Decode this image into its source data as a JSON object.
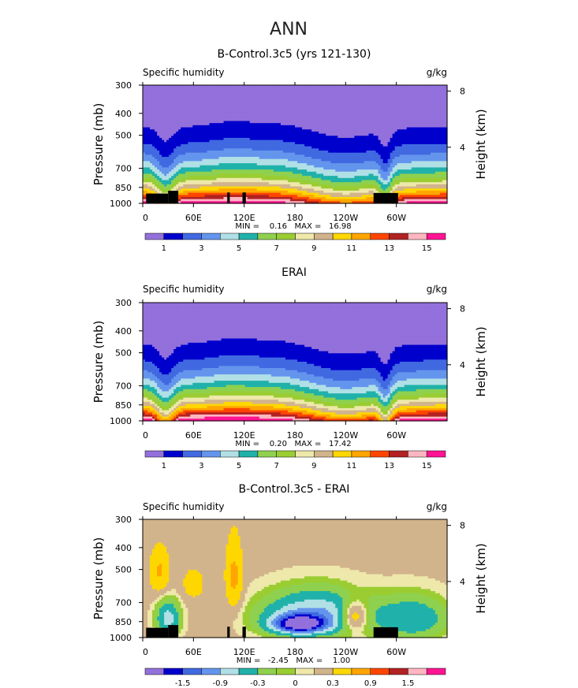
{
  "figure": {
    "season": "ANN",
    "colors_abs": [
      "#9370db",
      "#0000cd",
      "#4169e1",
      "#6495ed",
      "#b0e0e6",
      "#20b2aa",
      "#8fd14f",
      "#9acd32",
      "#eee8aa",
      "#d2b48c",
      "#ffd700",
      "#ffa500",
      "#ff4500",
      "#b22222",
      "#ffb6c1",
      "#ff1493"
    ],
    "colors_diff": [
      "#9370db",
      "#0000cd",
      "#4169e1",
      "#6495ed",
      "#b0e0e6",
      "#20b2aa",
      "#8fd14f",
      "#9acd32",
      "#eee8aa",
      "#d2b48c",
      "#ffd700",
      "#ffa500",
      "#ff4500",
      "#b22222",
      "#ffb6c1",
      "#ff1493"
    ]
  },
  "chart_data": [
    {
      "type": "heatmap",
      "title": "B-Control.3c5 (yrs 121-130)",
      "left_label": "Specific humidity",
      "right_label": "g/kg",
      "ylabel": "Pressure (mb)",
      "y2label": "Height (km)",
      "x_ticks": [
        "0",
        "60E",
        "120E",
        "180",
        "120W",
        "60W"
      ],
      "x_tick_lon": [
        0,
        60,
        120,
        180,
        240,
        300
      ],
      "xlim": [
        0,
        360
      ],
      "y_ticks": [
        "300",
        "400",
        "500",
        "700",
        "850",
        "1000"
      ],
      "y_tick_p": [
        300,
        400,
        500,
        700,
        850,
        1000
      ],
      "ylim": [
        300,
        1000
      ],
      "y2_ticks": [
        "8",
        "4"
      ],
      "y2_tick_km": [
        8,
        4
      ],
      "stats": "MIN =    0.16   MAX =   16.98",
      "min": 0.16,
      "max": 16.98,
      "colorbar_labels": [
        "1",
        "3",
        "5",
        "7",
        "9",
        "11",
        "13",
        "15"
      ],
      "colorbar_levels": [
        0,
        1,
        2,
        3,
        4,
        5,
        6,
        7,
        8,
        9,
        10,
        11,
        12,
        13,
        14,
        15,
        16
      ],
      "field": "control"
    },
    {
      "type": "heatmap",
      "title": "ERAI",
      "left_label": "Specific humidity",
      "right_label": "g/kg",
      "ylabel": "Pressure (mb)",
      "y2label": "Height (km)",
      "x_ticks": [
        "0",
        "60E",
        "120E",
        "180",
        "120W",
        "60W"
      ],
      "x_tick_lon": [
        0,
        60,
        120,
        180,
        240,
        300
      ],
      "xlim": [
        0,
        360
      ],
      "y_ticks": [
        "300",
        "400",
        "500",
        "700",
        "850",
        "1000"
      ],
      "y_tick_p": [
        300,
        400,
        500,
        700,
        850,
        1000
      ],
      "ylim": [
        300,
        1000
      ],
      "y2_ticks": [
        "8",
        "4"
      ],
      "y2_tick_km": [
        8,
        4
      ],
      "stats": "MIN =    0.20   MAX =   17.42",
      "min": 0.2,
      "max": 17.42,
      "colorbar_labels": [
        "1",
        "3",
        "5",
        "7",
        "9",
        "11",
        "13",
        "15"
      ],
      "colorbar_levels": [
        0,
        1,
        2,
        3,
        4,
        5,
        6,
        7,
        8,
        9,
        10,
        11,
        12,
        13,
        14,
        15,
        16
      ],
      "field": "erai"
    },
    {
      "type": "heatmap",
      "title": "B-Control.3c5 - ERAI",
      "left_label": "Specific humidity",
      "right_label": "g/kg",
      "ylabel": "Pressure (mb)",
      "y2label": "Height (km)",
      "x_ticks": [
        "0",
        "60E",
        "120E",
        "180",
        "120W",
        "60W"
      ],
      "x_tick_lon": [
        0,
        60,
        120,
        180,
        240,
        300
      ],
      "xlim": [
        0,
        360
      ],
      "y_ticks": [
        "300",
        "400",
        "500",
        "700",
        "850",
        "1000"
      ],
      "y_tick_p": [
        300,
        400,
        500,
        700,
        850,
        1000
      ],
      "ylim": [
        300,
        1000
      ],
      "y2_ticks": [
        "8",
        "4"
      ],
      "y2_tick_km": [
        8,
        4
      ],
      "stats": "MIN =   -2.45   MAX =    1.00",
      "min": -2.45,
      "max": 1.0,
      "colorbar_labels": [
        "-1.5",
        "-0.9",
        "-0.3",
        "0",
        "0.3",
        "0.9",
        "1.5"
      ],
      "colorbar_levels": [
        -2.1,
        -1.8,
        -1.5,
        -1.2,
        -0.9,
        -0.6,
        -0.3,
        -0.1,
        0,
        0.1,
        0.3,
        0.6,
        0.9,
        1.2,
        1.5,
        1.8,
        2.1
      ],
      "field": "diff"
    }
  ]
}
